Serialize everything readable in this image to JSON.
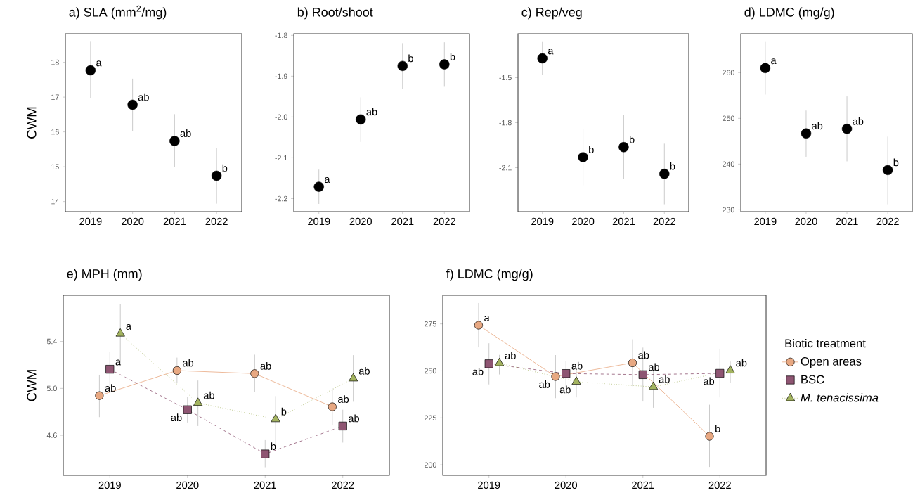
{
  "chart_data": [
    {
      "type": "scatter",
      "title": "a)  SLA  (mm$^{2}$/mg)",
      "ylabel": "CWM",
      "categories": [
        "2019",
        "2020",
        "2021",
        "2022"
      ],
      "ylim": [
        13.71,
        18.82
      ],
      "yticks": [
        14,
        15,
        16,
        17,
        18
      ],
      "series": [
        {
          "color": "#000000",
          "marker": "circle",
          "values": [
            17.77,
            16.78,
            15.74,
            14.74
          ],
          "errors": [
            [
              16.97,
              18.59
            ],
            [
              16.03,
              17.53
            ],
            [
              15.0,
              16.51
            ],
            [
              13.94,
              15.53
            ]
          ],
          "value_labels": [
            "a",
            "ab",
            "ab",
            "b"
          ]
        }
      ]
    },
    {
      "type": "scatter",
      "title": "b)  Root/shoot",
      "categories": [
        "2019",
        "2020",
        "2021",
        "2022"
      ],
      "ylim": [
        -2.232,
        -1.796
      ],
      "yticks": [
        -2.2,
        -2.1,
        {
          "value": -2.0,
          "label": "-2.0"
        },
        -1.9,
        -1.8
      ],
      "series": [
        {
          "color": "#000000",
          "marker": "circle",
          "values": [
            -2.171,
            -2.006,
            -1.875,
            -1.871
          ],
          "errors": [
            [
              -2.213,
              -2.129
            ],
            [
              -2.061,
              -1.952
            ],
            [
              -1.931,
              -1.819
            ],
            [
              -1.926,
              -1.817
            ]
          ],
          "value_labels": [
            "a",
            "ab",
            "b",
            "b"
          ]
        }
      ]
    },
    {
      "type": "scatter",
      "title": "c)  Rep/veg",
      "categories": [
        "2019",
        "2020",
        "2021",
        "2022"
      ],
      "ylim": [
        -2.393,
        -1.207
      ],
      "yticks": [
        -2.1,
        -1.8,
        -1.5
      ],
      "series": [
        {
          "color": "#000000",
          "marker": "circle",
          "values": [
            -1.371,
            -2.03,
            -1.963,
            -2.141
          ],
          "errors": [
            [
              -1.48,
              -1.262
            ],
            [
              -2.217,
              -1.842
            ],
            [
              -2.174,
              -1.75
            ],
            [
              -2.344,
              -1.94
            ]
          ],
          "value_labels": [
            "a",
            "b",
            "b",
            "b"
          ]
        }
      ]
    },
    {
      "type": "scatter",
      "title": "d)  LDMC  (mg/g)",
      "categories": [
        "2019",
        "2020",
        "2021",
        "2022"
      ],
      "ylim": [
        229.6,
        268.5
      ],
      "yticks": [
        230,
        240,
        250,
        260
      ],
      "series": [
        {
          "color": "#000000",
          "marker": "circle",
          "values": [
            261.0,
            246.7,
            247.7,
            238.7
          ],
          "errors": [
            [
              255.2,
              266.7
            ],
            [
              241.6,
              251.7
            ],
            [
              240.6,
              254.8
            ],
            [
              231.2,
              246.0
            ]
          ],
          "value_labels": [
            "a",
            "ab",
            "ab",
            "b"
          ]
        }
      ]
    },
    {
      "type": "line",
      "title": "e)  MPH  (mm)",
      "ylabel": "CWM",
      "categories": [
        "2019",
        "2020",
        "2021",
        "2022"
      ],
      "ylim": [
        4.259,
        5.793
      ],
      "yticks": [
        4.6,
        {
          "value": 5.0,
          "label": "5.0"
        },
        5.4
      ],
      "series": [
        {
          "color": "#e8a882",
          "marker": "circle",
          "line_style": "solid",
          "values": [
            4.938,
            5.152,
            5.126,
            4.843
          ],
          "errors": [
            [
              4.755,
              5.116
            ],
            [
              5.043,
              5.262
            ],
            [
              4.966,
              5.287
            ],
            [
              4.684,
              5.002
            ]
          ],
          "value_labels": [
            "ab",
            "ab",
            "ab",
            "ab"
          ]
        },
        {
          "color": "#8e5572",
          "marker": "square",
          "line_style": "dashed",
          "values": [
            5.163,
            4.818,
            4.441,
            4.679
          ],
          "errors": [
            [
              5.021,
              5.312
            ],
            [
              4.709,
              4.925
            ],
            [
              4.328,
              4.559
            ],
            [
              4.538,
              4.818
            ]
          ],
          "value_labels": [
            "a",
            "ab",
            "b",
            "ab"
          ]
        },
        {
          "color": "#a3b35f",
          "marker": "triangle",
          "line_style": "dotted",
          "values": [
            5.466,
            4.876,
            4.737,
            5.084
          ],
          "errors": [
            [
              5.213,
              5.72
            ],
            [
              4.679,
              5.067
            ],
            [
              4.516,
              4.934
            ],
            [
              4.886,
              5.283
            ]
          ],
          "value_labels": [
            "a",
            "ab",
            "b",
            "ab"
          ]
        }
      ]
    },
    {
      "type": "line",
      "title": "f)  LDMC  (mg/g)",
      "categories": [
        "2019",
        "2020",
        "2021",
        "2022"
      ],
      "ylim": [
        194.45,
        290.2
      ],
      "yticks": [
        200,
        225,
        250,
        275
      ],
      "legend": "right",
      "legend_title": "Biotic treatment",
      "series": [
        {
          "name": "Open areas",
          "color": "#e8a882",
          "marker": "circle",
          "line_style": "solid",
          "values": [
            274.3,
            247.0,
            254.3,
            215.2
          ],
          "errors": [
            [
              262.5,
              286.1
            ],
            [
              235.5,
              258.4
            ],
            [
              241.9,
              266.8
            ],
            [
              198.9,
              232.0
            ]
          ],
          "value_labels": [
            "a",
            "ab",
            "ab",
            "b"
          ]
        },
        {
          "name": "BSC",
          "color": "#8e5572",
          "marker": "square",
          "line_style": "dashed",
          "values": [
            253.8,
            248.6,
            248.0,
            248.7
          ],
          "errors": [
            [
              242.8,
              264.7
            ],
            [
              241.6,
              255.2
            ],
            [
              233.7,
              262.4
            ],
            [
              235.9,
              261.8
            ]
          ],
          "value_labels": [
            "ab",
            "ab",
            "ab",
            "ab"
          ]
        },
        {
          "name": "*M. tenacissima*",
          "color": "#a3b35f",
          "marker": "triangle",
          "line_style": "dotted",
          "values": [
            254.1,
            244.2,
            241.5,
            250.2
          ],
          "errors": [
            [
              248.1,
              258.5
            ],
            [
              235.9,
              251.7
            ],
            [
              230.4,
              250.6
            ],
            [
              243.6,
              255.0
            ]
          ],
          "value_labels": [
            "ab",
            "ab",
            "ab",
            "ab"
          ]
        }
      ]
    }
  ]
}
